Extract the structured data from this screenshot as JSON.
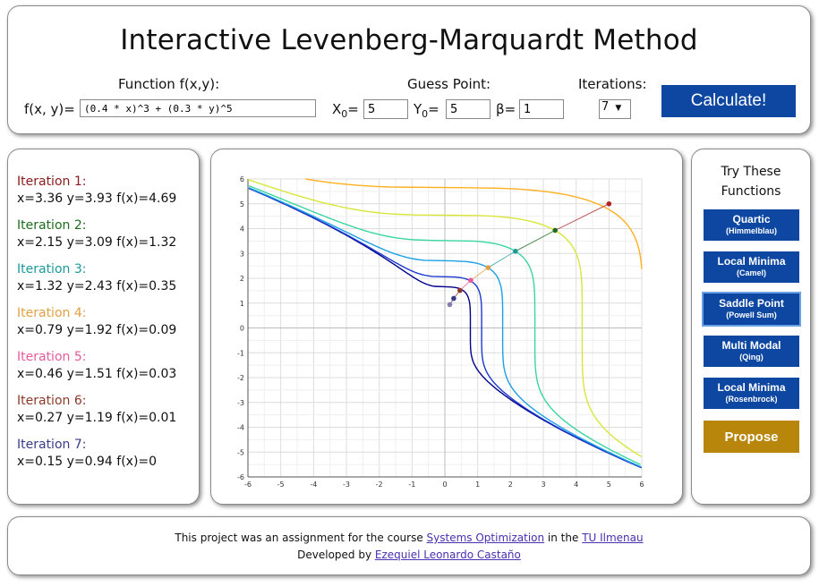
{
  "header": {
    "title": "Interactive Levenberg-Marquardt Method",
    "function_label": "Function f(x,y):",
    "function_prefix": "f(x, y)=",
    "function_value": "(0.4 * x)^3 + (0.3 * y)^5",
    "guess_label": "Guess Point:",
    "x0_label": "X",
    "x0_sub": "0",
    "x0_eq": "=",
    "x0_value": "5",
    "y0_label": "Y",
    "y0_sub": "0",
    "y0_eq": "=",
    "y0_value": "5",
    "beta_label": "β=",
    "beta_value": "1",
    "iterations_label": "Iterations:",
    "iterations_value": "7",
    "calculate_label": "Calculate!"
  },
  "iterations": [
    {
      "title": "Iteration 1:",
      "text": "x=3.36 y=3.93 f(x)=4.69",
      "color": "#8b1a1a"
    },
    {
      "title": "Iteration 2:",
      "text": "x=2.15 y=3.09 f(x)=1.32",
      "color": "#1e6b1e"
    },
    {
      "title": "Iteration 3:",
      "text": "x=1.32 y=2.43 f(x)=0.35",
      "color": "#1a9a9a"
    },
    {
      "title": "Iteration 4:",
      "text": "x=0.79 y=1.92 f(x)=0.09",
      "color": "#e0a040"
    },
    {
      "title": "Iteration 5:",
      "text": "x=0.46 y=1.51 f(x)=0.03",
      "color": "#e85a9a"
    },
    {
      "title": "Iteration 6:",
      "text": "x=0.27 y=1.19 f(x)=0.01",
      "color": "#8b3a2a"
    },
    {
      "title": "Iteration 7:",
      "text": "x=0.15 y=0.94 f(x)=0",
      "color": "#3a3a8a"
    }
  ],
  "sidebar": {
    "title": "Try These Functions",
    "buttons": [
      {
        "name": "Quartic",
        "sub": "(Himmelblau)"
      },
      {
        "name": "Local Minima",
        "sub": "(Camel)"
      },
      {
        "name": "Saddle Point",
        "sub": "(Powell Sum)"
      },
      {
        "name": "Multi Modal",
        "sub": "(Qing)"
      },
      {
        "name": "Local Minima",
        "sub": "(Rosenbrock)"
      }
    ],
    "propose_label": "Propose"
  },
  "footer": {
    "line1_a": "This project was an assignment for the course ",
    "line1_link1": "Systems Optimization",
    "line1_b": " in the ",
    "line1_link2": "TU Ilmenau",
    "line2_a": "Developed by ",
    "line2_link": "Ezequiel Leonardo Castaño"
  },
  "chart_data": {
    "type": "line",
    "xlim": [
      -6,
      6
    ],
    "ylim": [
      -6,
      6
    ],
    "x_ticks": [
      -6,
      -5,
      -4,
      -3,
      -2,
      -1,
      0,
      1,
      2,
      3,
      4,
      5,
      6
    ],
    "y_ticks": [
      -6,
      -5,
      -4,
      -3,
      -2,
      -1,
      0,
      1,
      2,
      3,
      4,
      5,
      6
    ],
    "grid": true,
    "contour_levels": [
      0.03,
      0.09,
      0.35,
      1.32,
      4.69,
      14,
      34
    ],
    "contour_colors": [
      "#00008b",
      "#1a3ad0",
      "#1aa0e6",
      "#3ad6a0",
      "#d8e63a",
      "#ffb020",
      "#ff7a00",
      "#e01a1a"
    ],
    "path": [
      {
        "x": 5,
        "y": 5,
        "color": "#b22222"
      },
      {
        "x": 3.36,
        "y": 3.93,
        "color": "#1e6b1e"
      },
      {
        "x": 2.15,
        "y": 3.09,
        "color": "#1a9a9a"
      },
      {
        "x": 1.32,
        "y": 2.43,
        "color": "#e0a040"
      },
      {
        "x": 0.79,
        "y": 1.92,
        "color": "#e85a9a"
      },
      {
        "x": 0.46,
        "y": 1.51,
        "color": "#8b3a2a"
      },
      {
        "x": 0.27,
        "y": 1.19,
        "color": "#3a3a8a"
      },
      {
        "x": 0.15,
        "y": 0.94,
        "color": "#8a7ab0"
      }
    ]
  }
}
